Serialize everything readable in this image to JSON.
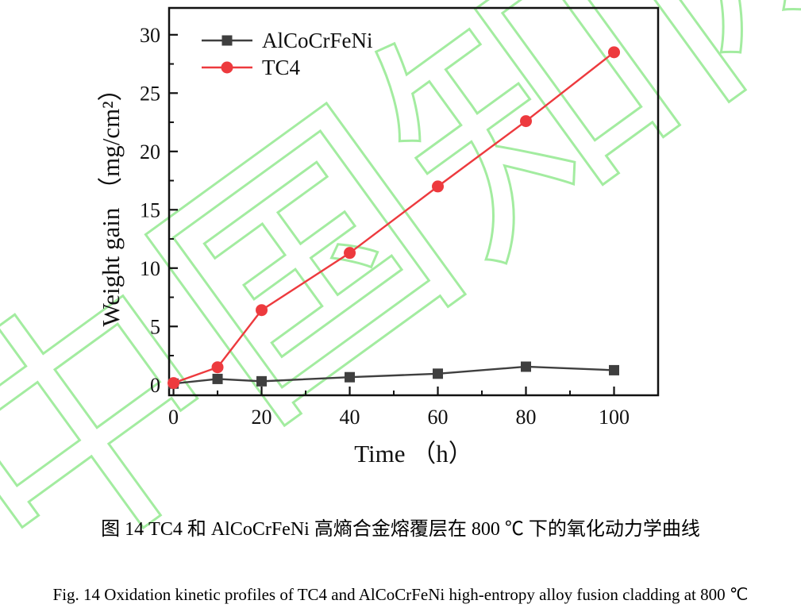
{
  "figure": {
    "watermark_text": "中国知网",
    "watermark_color": "#a3eca0",
    "caption_zh": "图  14 TC4 和 AlCoCrFeNi  高熵合金熔覆层在 800  ℃ 下的氧化动力学曲线",
    "caption_en": "Fig. 14 Oxidation kinetic profiles of TC4 and AlCoCrFeNi high-entropy alloy fusion cladding at 800  ℃"
  },
  "chart_data": {
    "type": "line",
    "title": "",
    "xlabel": "Time （h）",
    "ylabel": "Weight gain （mg/cm²）",
    "xlim": [
      -1,
      110
    ],
    "ylim": [
      -0.9,
      32.3
    ],
    "xticks": [
      0,
      20,
      40,
      60,
      80,
      100
    ],
    "xminorticks": [
      10,
      30,
      50,
      70,
      90
    ],
    "yticks": [
      0,
      5,
      10,
      15,
      20,
      25,
      30
    ],
    "yminorticks": [
      2.5,
      7.5,
      12.5,
      17.5,
      22.5,
      27.5
    ],
    "grid": false,
    "legend_position": "top-left-inside",
    "x": [
      0,
      10,
      20,
      40,
      60,
      80,
      100
    ],
    "series": [
      {
        "name": "AlCoCrFeNi",
        "color": "#3f3f3f",
        "marker": "square",
        "values": [
          0.1,
          0.5,
          0.3,
          0.65,
          0.95,
          1.55,
          1.25
        ]
      },
      {
        "name": "TC4",
        "color": "#ed3a3e",
        "marker": "circle",
        "values": [
          0.15,
          1.5,
          6.4,
          11.3,
          17.0,
          22.6,
          28.5
        ]
      }
    ]
  }
}
